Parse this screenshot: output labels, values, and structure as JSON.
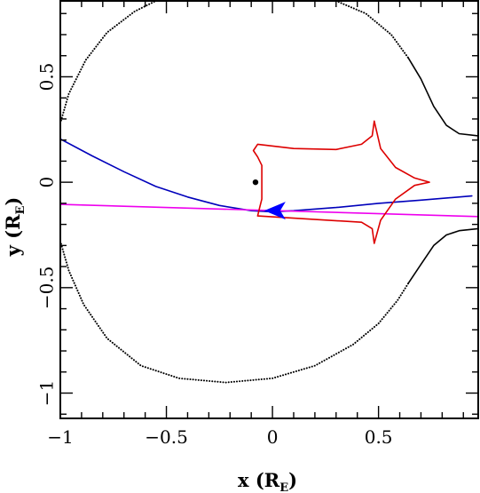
{
  "chart_data": {
    "type": "line",
    "title": "",
    "xlabel": "x (R",
    "xlabel_sub": "E",
    "xlabel_close": ")",
    "ylabel": "y (R",
    "ylabel_sub": "E",
    "ylabel_close": ")",
    "xlim": [
      -1.0,
      0.97
    ],
    "ylim": [
      -1.12,
      0.86
    ],
    "grid": false,
    "xticks": [
      {
        "value": -1.0,
        "label": "−1"
      },
      {
        "value": -0.5,
        "label": "−0.5"
      },
      {
        "value": 0.0,
        "label": "0"
      },
      {
        "value": 0.5,
        "label": "0.5"
      }
    ],
    "yticks": [
      {
        "value": -1.0,
        "label": "−1"
      },
      {
        "value": -0.5,
        "label": "−0.5"
      },
      {
        "value": 0.0,
        "label": "0"
      },
      {
        "value": 0.5,
        "label": "0.5"
      }
    ],
    "series": [
      {
        "color": "#000000",
        "style": "dotted",
        "points": [
          [
            -1.0,
            0.28
          ],
          [
            -0.96,
            0.42
          ],
          [
            -0.88,
            0.58
          ],
          [
            -0.78,
            0.71
          ],
          [
            -0.65,
            0.81
          ],
          [
            -0.55,
            0.86
          ]
        ]
      },
      {
        "color": "#000000",
        "style": "dotted",
        "points": [
          [
            0.3,
            0.86
          ],
          [
            0.44,
            0.8
          ],
          [
            0.56,
            0.7
          ],
          [
            0.64,
            0.59
          ]
        ]
      },
      {
        "color": "#000000",
        "style": "solid",
        "points": [
          [
            0.64,
            0.59
          ],
          [
            0.7,
            0.49
          ],
          [
            0.76,
            0.36
          ],
          [
            0.82,
            0.27
          ],
          [
            0.88,
            0.23
          ],
          [
            0.97,
            0.22
          ]
        ]
      },
      {
        "color": "#000000",
        "style": "dotted",
        "points": [
          [
            -1.0,
            -0.28
          ],
          [
            -0.96,
            -0.42
          ],
          [
            -0.89,
            -0.58
          ],
          [
            -0.78,
            -0.74
          ],
          [
            -0.62,
            -0.87
          ],
          [
            -0.44,
            -0.93
          ],
          [
            -0.22,
            -0.95
          ],
          [
            0.0,
            -0.93
          ],
          [
            0.2,
            -0.87
          ],
          [
            0.38,
            -0.77
          ],
          [
            0.5,
            -0.67
          ],
          [
            0.59,
            -0.56
          ],
          [
            0.64,
            -0.48
          ]
        ]
      },
      {
        "color": "#000000",
        "style": "solid",
        "points": [
          [
            0.64,
            -0.48
          ],
          [
            0.7,
            -0.39
          ],
          [
            0.76,
            -0.3
          ],
          [
            0.82,
            -0.25
          ],
          [
            0.88,
            -0.23
          ],
          [
            0.97,
            -0.22
          ]
        ]
      },
      {
        "color": "#0000bb",
        "style": "solid",
        "points": [
          [
            -1.0,
            0.205
          ],
          [
            -0.85,
            0.125
          ],
          [
            -0.7,
            0.05
          ],
          [
            -0.55,
            -0.02
          ],
          [
            -0.4,
            -0.07
          ],
          [
            -0.25,
            -0.11
          ],
          [
            -0.1,
            -0.135
          ],
          [
            0.0,
            -0.14
          ],
          [
            0.1,
            -0.135
          ],
          [
            0.3,
            -0.12
          ],
          [
            0.5,
            -0.1
          ],
          [
            0.7,
            -0.085
          ],
          [
            0.94,
            -0.065
          ]
        ]
      },
      {
        "color": "#ee00ee",
        "style": "solid",
        "points": [
          [
            -1.0,
            -0.105
          ],
          [
            0.97,
            -0.163
          ]
        ]
      },
      {
        "color": "#dd0000",
        "style": "solid",
        "points": [
          [
            -0.07,
            -0.16
          ],
          [
            0.42,
            -0.19
          ],
          [
            0.47,
            -0.22
          ],
          [
            0.48,
            -0.29
          ],
          [
            0.51,
            -0.18
          ],
          [
            0.58,
            -0.08
          ],
          [
            0.67,
            -0.015
          ],
          [
            0.74,
            0.0
          ],
          [
            0.67,
            0.02
          ],
          [
            0.58,
            0.07
          ],
          [
            0.51,
            0.16
          ],
          [
            0.48,
            0.29
          ],
          [
            0.47,
            0.22
          ],
          [
            0.42,
            0.18
          ],
          [
            0.3,
            0.155
          ],
          [
            0.1,
            0.16
          ],
          [
            -0.07,
            0.18
          ],
          [
            -0.09,
            0.15
          ],
          [
            -0.07,
            0.12
          ],
          [
            -0.05,
            0.08
          ],
          [
            -0.05,
            0.03
          ],
          [
            -0.05,
            -0.03
          ],
          [
            -0.05,
            -0.08
          ],
          [
            -0.06,
            -0.12
          ],
          [
            -0.07,
            -0.16
          ]
        ]
      }
    ],
    "markers": [
      {
        "kind": "dot",
        "color": "#000000",
        "x": -0.08,
        "y": 0.0
      },
      {
        "kind": "arrowhead",
        "color": "#0000ff",
        "x": 0.02,
        "y": -0.135,
        "direction": "left"
      }
    ]
  }
}
